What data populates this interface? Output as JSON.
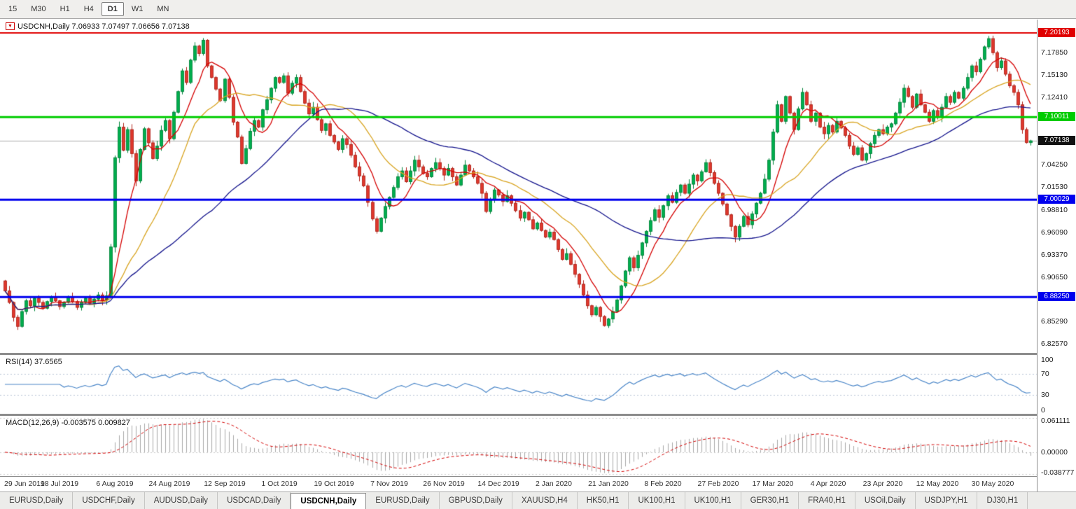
{
  "toolbar": {
    "timeframes": [
      {
        "label": "15",
        "selected": false
      },
      {
        "label": "M30",
        "selected": false
      },
      {
        "label": "H1",
        "selected": false
      },
      {
        "label": "H4",
        "selected": false
      },
      {
        "label": "D1",
        "selected": true
      },
      {
        "label": "W1",
        "selected": false
      },
      {
        "label": "MN",
        "selected": false
      }
    ]
  },
  "chart": {
    "title_text": "USDCNH,Daily 7.06933 7.07497 7.06656 7.07138",
    "symbol": "USDCNH",
    "timeframe": "Daily"
  },
  "chart_data": {
    "type": "candlestick",
    "symbol": "USDCNH",
    "timeframe": "Daily",
    "title_ohlc": {
      "open": 7.06933,
      "high": 7.07497,
      "low": 7.06656,
      "close": 7.07138
    },
    "price_range": {
      "min": 6.815,
      "max": 7.218
    },
    "first_open": 6.902,
    "wick_base": 0.0012,
    "wick_var": 0.0055,
    "closes": [
      6.89,
      6.876,
      6.858,
      6.847,
      6.865,
      6.878,
      6.872,
      6.881,
      6.876,
      6.869,
      6.877,
      6.883,
      6.878,
      6.871,
      6.876,
      6.882,
      6.877,
      6.87,
      6.876,
      6.881,
      6.875,
      6.88,
      6.885,
      6.879,
      6.884,
      6.943,
      7.051,
      7.088,
      7.06,
      7.085,
      7.056,
      7.023,
      7.061,
      7.086,
      7.069,
      7.05,
      7.065,
      7.084,
      7.096,
      7.074,
      7.106,
      7.131,
      7.156,
      7.142,
      7.169,
      7.186,
      7.177,
      7.193,
      7.162,
      7.148,
      7.134,
      7.12,
      7.146,
      7.124,
      7.094,
      7.076,
      7.044,
      7.062,
      7.083,
      7.096,
      7.088,
      7.109,
      7.121,
      7.135,
      7.148,
      7.142,
      7.15,
      7.129,
      7.141,
      7.148,
      7.131,
      7.117,
      7.104,
      7.112,
      7.097,
      7.084,
      7.092,
      7.078,
      7.07,
      7.061,
      7.074,
      7.067,
      7.054,
      7.04,
      7.029,
      7.017,
      6.997,
      6.977,
      6.962,
      6.978,
      6.992,
      7.003,
      7.015,
      7.028,
      7.035,
      7.022,
      7.035,
      7.048,
      7.04,
      7.032,
      7.028,
      7.038,
      7.045,
      7.038,
      7.03,
      7.038,
      7.028,
      7.018,
      7.03,
      7.042,
      7.035,
      7.028,
      7.02,
      7.008,
      6.986,
      7.0,
      7.012,
      7.006,
      6.998,
      7.005,
      6.996,
      6.987,
      6.978,
      6.985,
      6.976,
      6.965,
      6.972,
      6.963,
      6.955,
      6.961,
      6.952,
      6.94,
      6.928,
      6.935,
      6.922,
      6.91,
      6.898,
      6.885,
      6.872,
      6.861,
      6.87,
      6.859,
      6.848,
      6.856,
      6.865,
      6.879,
      6.896,
      6.914,
      6.93,
      6.918,
      6.933,
      6.948,
      6.962,
      6.975,
      6.988,
      6.979,
      6.993,
      7.005,
      6.997,
      7.009,
      7.018,
      7.008,
      7.019,
      7.03,
      7.023,
      7.034,
      7.045,
      7.033,
      7.02,
      7.008,
      6.995,
      6.982,
      6.968,
      6.955,
      6.968,
      6.98,
      6.97,
      6.983,
      6.996,
      7.008,
      7.025,
      7.048,
      7.082,
      7.115,
      7.095,
      7.125,
      7.105,
      7.085,
      7.11,
      7.13,
      7.115,
      7.095,
      7.105,
      7.088,
      7.08,
      7.09,
      7.082,
      7.095,
      7.087,
      7.078,
      7.065,
      7.055,
      7.063,
      7.048,
      7.056,
      7.068,
      7.078,
      7.085,
      7.08,
      7.088,
      7.092,
      7.105,
      7.118,
      7.135,
      7.125,
      7.112,
      7.128,
      7.115,
      7.106,
      7.095,
      7.108,
      7.1,
      7.112,
      7.125,
      7.118,
      7.13,
      7.123,
      7.135,
      7.148,
      7.162,
      7.155,
      7.17,
      7.185,
      7.195,
      7.178,
      7.16,
      7.168,
      7.152,
      7.138,
      7.13,
      7.115,
      7.085,
      7.0693,
      7.0714
    ],
    "candle_colors": {
      "up_fill": "#00b050",
      "up_border": "#00843a",
      "down_fill": "#e23a2e",
      "down_border": "#b0241b"
    },
    "moving_averages": [
      {
        "period": 8,
        "color": "#d40000"
      },
      {
        "period": 20,
        "color": "#d8a420"
      },
      {
        "period": 50,
        "color": "#14148c"
      }
    ],
    "levels": [
      {
        "price": 7.20193,
        "badge": "7.20193",
        "color": "#e00000",
        "width": 2
      },
      {
        "price": 7.10011,
        "badge": "7.10011",
        "color": "#00cc00",
        "width": 3
      },
      {
        "price": 7.00029,
        "badge": "7.00029",
        "color": "#0000ee",
        "width": 3
      },
      {
        "price": 6.8825,
        "badge": "6.88250",
        "color": "#0000ee",
        "width": 3
      }
    ],
    "current_price": {
      "price": 7.07138,
      "badge": "7.07138",
      "color": "#111111",
      "line_color": "#a8a8a8"
    },
    "price_axis_labels": [
      7.1785,
      7.1513,
      7.1241,
      7.0425,
      7.0153,
      6.9881,
      6.9609,
      6.9337,
      6.9065,
      6.8529,
      6.8257
    ],
    "x_labels": [
      [
        0,
        "29 Jun 2019"
      ],
      [
        13,
        "18 Jul 2019"
      ],
      [
        26,
        "6 Aug 2019"
      ],
      [
        39,
        "24 Aug 2019"
      ],
      [
        52,
        "12 Sep 2019"
      ],
      [
        65,
        "1 Oct 2019"
      ],
      [
        78,
        "19 Oct 2019"
      ],
      [
        91,
        "7 Nov 2019"
      ],
      [
        104,
        "26 Nov 2019"
      ],
      [
        117,
        "14 Dec 2019"
      ],
      [
        130,
        "2 Jan 2020"
      ],
      [
        143,
        "21 Jan 2020"
      ],
      [
        156,
        "8 Feb 2020"
      ],
      [
        169,
        "27 Feb 2020"
      ],
      [
        182,
        "17 Mar 2020"
      ],
      [
        195,
        "4 Apr 2020"
      ],
      [
        208,
        "23 Apr 2020"
      ],
      [
        221,
        "12 May 2020"
      ],
      [
        234,
        "30 May 2020"
      ]
    ],
    "indicators": {
      "rsi": {
        "label": "RSI(14) 37.6565",
        "period": 14,
        "value": 37.6565,
        "axis_levels": [
          100,
          70,
          30,
          0
        ],
        "dashed_levels": [
          70,
          30
        ],
        "line_color": "#4a86c8",
        "dash_color": "#b8c4d6"
      },
      "macd": {
        "label": "MACD(12,26,9) -0.003575 0.009827",
        "fast": 12,
        "slow": 26,
        "signal": 9,
        "main_value": -0.003575,
        "signal_value": 0.009827,
        "axis_labels": [
          {
            "value": 0.061111,
            "text": "0.061111"
          },
          {
            "value": 0,
            "text": "0.00000"
          },
          {
            "value": -0.038777,
            "text": "-0.038777"
          }
        ],
        "max": 0.061111,
        "min": -0.038777,
        "hist_color": "#a8a8a8",
        "signal_color": "#d40000",
        "grid_color": "#cccccc"
      }
    }
  },
  "tabbar": {
    "tabs": [
      {
        "label": "EURUSD,Daily",
        "selected": false
      },
      {
        "label": "USDCHF,Daily",
        "selected": false
      },
      {
        "label": "AUDUSD,Daily",
        "selected": false
      },
      {
        "label": "USDCAD,Daily",
        "selected": false
      },
      {
        "label": "USDCNH,Daily",
        "selected": true
      },
      {
        "label": "EURUSD,Daily",
        "selected": false
      },
      {
        "label": "GBPUSD,Daily",
        "selected": false
      },
      {
        "label": "XAUUSD,H4",
        "selected": false
      },
      {
        "label": "HK50,H1",
        "selected": false
      },
      {
        "label": "UK100,H1",
        "selected": false
      },
      {
        "label": "UK100,H1",
        "selected": false
      },
      {
        "label": "GER30,H1",
        "selected": false
      },
      {
        "label": "FRA40,H1",
        "selected": false
      },
      {
        "label": "USOil,Daily",
        "selected": false
      },
      {
        "label": "USDJPY,H1",
        "selected": false
      },
      {
        "label": "DJ30,H1",
        "selected": false
      }
    ]
  }
}
